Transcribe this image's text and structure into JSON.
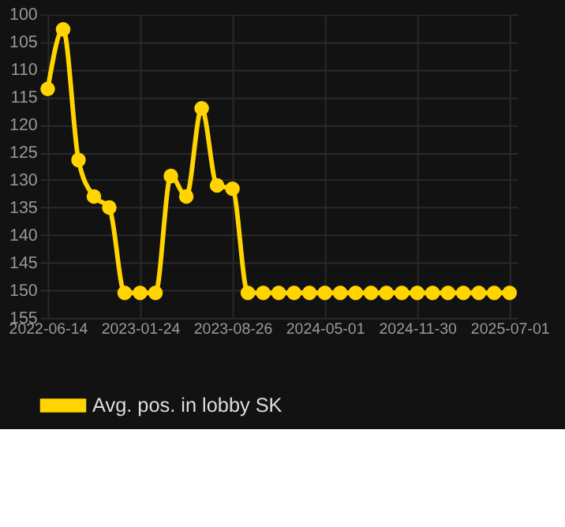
{
  "chart_data": {
    "type": "line",
    "categories": [
      "2022-06-14",
      null,
      null,
      null,
      null,
      null,
      "2023-01-24",
      null,
      null,
      null,
      null,
      null,
      "2023-08-26",
      null,
      null,
      null,
      null,
      null,
      "2024-05-01",
      null,
      null,
      null,
      null,
      null,
      "2024-11-30",
      null,
      null,
      null,
      null,
      null,
      "2025-07-01"
    ],
    "series": [
      {
        "name": "Avg. pos. in lobby SK",
        "color": "#ffd400",
        "values": [
          113.5,
          102.7,
          126.4,
          133,
          135,
          150.5,
          150.5,
          150.5,
          129.3,
          133,
          117,
          131,
          131.6,
          150.5,
          150.5,
          150.5,
          150.5,
          150.5,
          150.5,
          150.5,
          150.5,
          150.5,
          150.5,
          150.5,
          150.5,
          150.5,
          150.5,
          150.5,
          150.5,
          150.5,
          150.5
        ]
      }
    ],
    "ylim": [
      155,
      100
    ],
    "yticks": [
      100,
      105,
      110,
      115,
      120,
      125,
      130,
      135,
      140,
      145,
      150,
      155
    ],
    "grid": true,
    "legend": "bottom",
    "marker": "circle",
    "line_style": "solid"
  }
}
